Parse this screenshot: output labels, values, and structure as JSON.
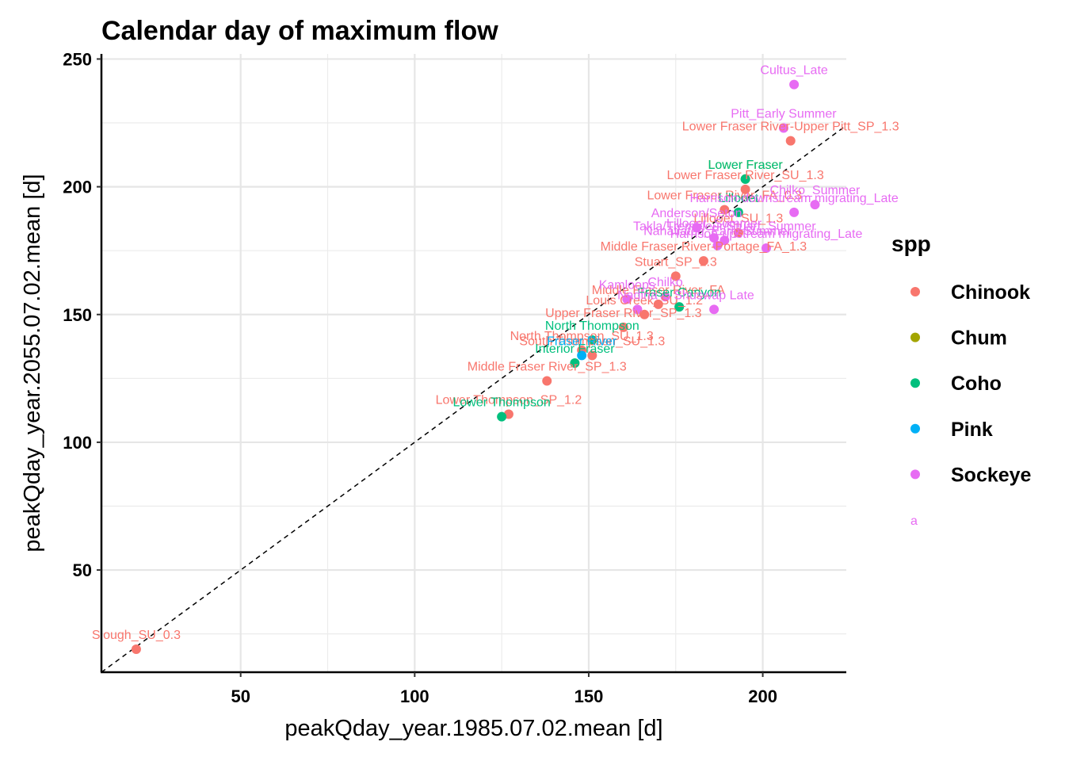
{
  "chart_data": {
    "type": "scatter",
    "title": "Calendar day of maximum flow",
    "xlabel": "peakQday_year.1985.07.02.mean [d]",
    "ylabel": "peakQday_year.2055.07.02.mean [d]",
    "xlim": [
      10,
      224
    ],
    "ylim": [
      10,
      252
    ],
    "x_ticks": [
      50,
      100,
      150,
      200
    ],
    "y_ticks": [
      50,
      100,
      150,
      200,
      250
    ],
    "grid": true,
    "reference_line": "y = x (dashed)",
    "legend": {
      "title": "spp",
      "placement": "right",
      "entries": [
        {
          "name": "Chinook",
          "color": "#F8766D"
        },
        {
          "name": "Chum",
          "color": "#A3A500"
        },
        {
          "name": "Coho",
          "color": "#00BF7D"
        },
        {
          "name": "Pink",
          "color": "#00B0F6"
        },
        {
          "name": "Sockeye",
          "color": "#E76BF3"
        }
      ],
      "text_key": "a"
    },
    "series": [
      {
        "name": "Chinook",
        "color": "#F8766D",
        "points": [
          {
            "x": 20,
            "y": 19,
            "label": "Slough_SU_0.3"
          },
          {
            "x": 127,
            "y": 111,
            "label": "Lower Thompson_SP_1.2"
          },
          {
            "x": 138,
            "y": 124,
            "label": "Middle Fraser River_SP_1.3"
          },
          {
            "x": 151,
            "y": 134,
            "label": "South Thompson_SU_1.3"
          },
          {
            "x": 148,
            "y": 136,
            "label": "North Thompson_SU_1.3"
          },
          {
            "x": 160,
            "y": 145,
            "label": "Upper Fraser River_SP_1.3"
          },
          {
            "x": 166,
            "y": 150,
            "label": "Louis Creek_SU_1.2"
          },
          {
            "x": 170,
            "y": 154,
            "label": "Middle Fraser River_FA"
          },
          {
            "x": 175,
            "y": 165,
            "label": "Stuart_SP_1.3"
          },
          {
            "x": 183,
            "y": 171,
            "label": "Middle Fraser River-Portage_FA_1.3"
          },
          {
            "x": 189,
            "y": 191,
            "label": "Lower Fraser River_FA_0.3"
          },
          {
            "x": 193,
            "y": 182,
            "label": "Lillooet_SU_1.3"
          },
          {
            "x": 195,
            "y": 199,
            "label": "Lower Fraser River_SU_1.3"
          },
          {
            "x": 208,
            "y": 218,
            "label": "Lower Fraser River-Upper Pitt_SP_1.3"
          }
        ]
      },
      {
        "name": "Chum",
        "color": "#A3A500",
        "points": [
          {
            "x": 195,
            "y": 203,
            "label": "Lower Fraser"
          }
        ]
      },
      {
        "name": "Coho",
        "color": "#00BF7D",
        "points": [
          {
            "x": 125,
            "y": 110,
            "label": "Lower Thompson"
          },
          {
            "x": 146,
            "y": 131,
            "label": "Interior Fraser"
          },
          {
            "x": 151,
            "y": 140,
            "label": "North Thompson"
          },
          {
            "x": 176,
            "y": 153,
            "label": "Fraser Canyon"
          },
          {
            "x": 193,
            "y": 190,
            "label": "Lillooet"
          },
          {
            "x": 195,
            "y": 203,
            "label": "Lower Fraser"
          }
        ]
      },
      {
        "name": "Pink",
        "color": "#00B0F6",
        "points": [
          {
            "x": 148,
            "y": 134,
            "label": "Fraser River"
          }
        ]
      },
      {
        "name": "Sockeye",
        "color": "#E76BF3",
        "points": [
          {
            "x": 161,
            "y": 156,
            "label": "Kamloops"
          },
          {
            "x": 164,
            "y": 152,
            "label": "Nadina"
          },
          {
            "x": 172,
            "y": 157,
            "label": "Chilko"
          },
          {
            "x": 186,
            "y": 152,
            "label": "Shuswap Late"
          },
          {
            "x": 187,
            "y": 177,
            "label": "Nahatlatch_Early Summer"
          },
          {
            "x": 181,
            "y": 184,
            "label": "Anderson/Seton"
          },
          {
            "x": 186,
            "y": 180,
            "label": "Lillooet_Summer"
          },
          {
            "x": 189,
            "y": 179,
            "label": "Takla/Trembleur/Stuart_Summer"
          },
          {
            "x": 201,
            "y": 176,
            "label": "Harrison-upstream migrating_Late"
          },
          {
            "x": 209,
            "y": 190,
            "label": "Harrison-downstream migrating_Late"
          },
          {
            "x": 215,
            "y": 193,
            "label": "Chilko_Summer"
          },
          {
            "x": 206,
            "y": 223,
            "label": "Pitt_Early Summer"
          },
          {
            "x": 209,
            "y": 240,
            "label": "Cultus_Late"
          }
        ]
      }
    ]
  }
}
